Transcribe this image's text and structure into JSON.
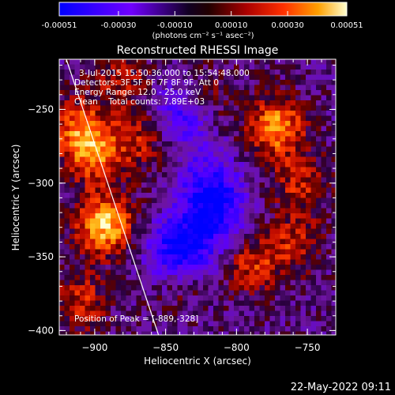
{
  "colorbar": {
    "tick_labels": [
      "-0.00051",
      "-0.00030",
      "-0.00010",
      "0.00010",
      "0.00030",
      "0.00051"
    ],
    "ticks": [
      -0.00051,
      -0.0003,
      -0.0001,
      0.0001,
      0.0003,
      0.00051
    ],
    "range": [
      -0.00051,
      0.00051
    ],
    "unit_label": "(photons cm⁻² s⁻¹ asec⁻²)",
    "colors": [
      "#0000ff",
      "#6a00ff",
      "#000000",
      "#8b0000",
      "#ff2a00",
      "#ff9a00",
      "#ffffc8"
    ]
  },
  "chart_data": {
    "type": "heatmap",
    "title": "Reconstructed RHESSI Image",
    "xlabel": "Heliocentric X (arcsec)",
    "ylabel": "Heliocentric Y (arcsec)",
    "xlim": [
      -925,
      -730
    ],
    "ylim": [
      -403,
      -216
    ],
    "xticks": [
      -900,
      -850,
      -800,
      -750
    ],
    "yticks": [
      -250,
      -300,
      -350,
      -400
    ],
    "xtick_labels": [
      "−900",
      "−850",
      "−800",
      "−750"
    ],
    "ytick_labels": [
      "−250",
      "−300",
      "−350",
      "−400"
    ],
    "limb_line": [
      [
        -920,
        -216
      ],
      [
        -855,
        -403
      ]
    ],
    "sources": [
      {
        "x": -893,
        "y": -328,
        "amp": 0.00051
      },
      {
        "x": -900,
        "y": -280,
        "amp": 0.00036
      },
      {
        "x": -912,
        "y": -262,
        "amp": 0.0003
      },
      {
        "x": -865,
        "y": -270,
        "amp": 0.00025
      },
      {
        "x": -910,
        "y": -380,
        "amp": 0.00024
      },
      {
        "x": -772,
        "y": -262,
        "amp": 0.00043
      },
      {
        "x": -755,
        "y": -300,
        "amp": 0.00022
      },
      {
        "x": -790,
        "y": -355,
        "amp": 0.00026
      },
      {
        "x": -760,
        "y": -340,
        "amp": 0.00022
      },
      {
        "x": -840,
        "y": -365,
        "amp": 0.0002
      },
      {
        "x": -880,
        "y": -230,
        "amp": 0.0002
      },
      {
        "x": -820,
        "y": -240,
        "amp": 0.00015
      }
    ],
    "negatives": [
      {
        "x": -840,
        "y": -348,
        "amp": -0.0005
      },
      {
        "x": -815,
        "y": -322,
        "amp": -0.00035
      },
      {
        "x": -840,
        "y": -255,
        "amp": -0.0003
      },
      {
        "x": -820,
        "y": -300,
        "amp": -0.00025
      }
    ],
    "peak": {
      "x": -889,
      "y": -328
    }
  },
  "annotations": {
    "time_range": "3-Jul-2015 15:50:36.000 to 15:54:48.000",
    "detectors": "Detectors: 3F 5F 6F 7F 8F 9F, Att 0",
    "energy_range": "Energy Range: 12.0 - 25.0 keV",
    "method_counts": "Clean    Total counts: 7.89E+03",
    "peak_position": "Position of Peak = [-889,-328]"
  },
  "footer": {
    "date": "22-May-2022 09:11"
  }
}
